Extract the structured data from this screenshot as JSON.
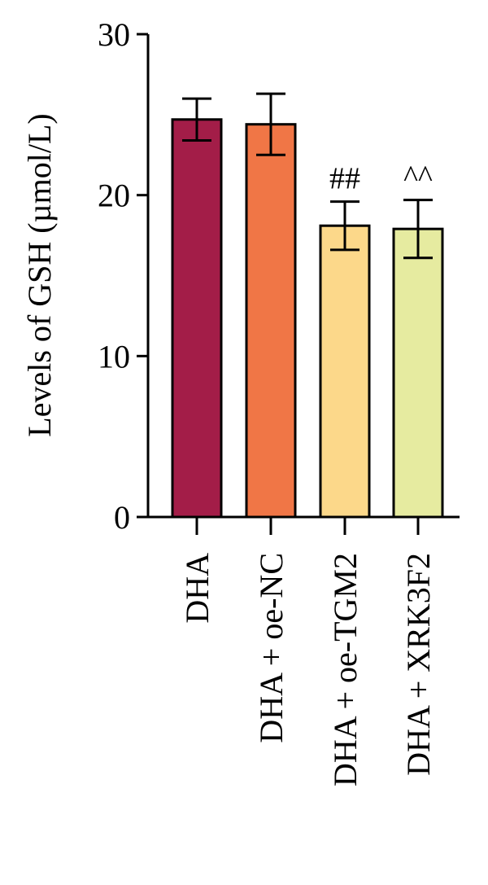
{
  "chart_data": {
    "type": "bar",
    "title": "",
    "xlabel": "",
    "ylabel": "Levels of GSH (µmol/L)",
    "ylim": [
      0,
      30
    ],
    "yticks": [
      0,
      10,
      20,
      30
    ],
    "categories": [
      "DHA",
      "DHA + oe-NC",
      "DHA + oe-TGM2",
      "DHA + XRK3F2"
    ],
    "values": [
      24.7,
      24.4,
      18.1,
      17.9
    ],
    "errors": [
      1.3,
      1.9,
      1.5,
      1.8
    ],
    "colors": [
      "#a31d48",
      "#f07646",
      "#fcd88a",
      "#e6eba0"
    ],
    "annotations": [
      "",
      "",
      "##",
      "^^"
    ],
    "grid": false,
    "legend": "none"
  }
}
